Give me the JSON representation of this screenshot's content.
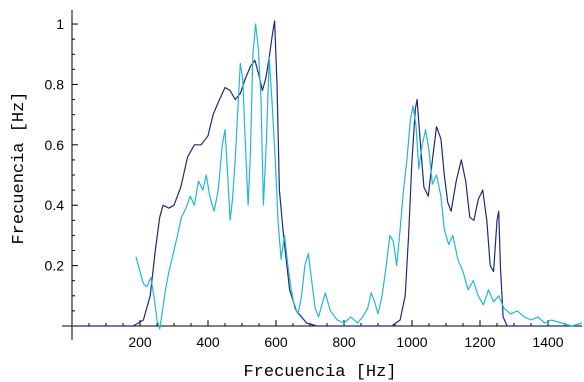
{
  "chart_data": {
    "type": "line",
    "title": "",
    "xlabel": "Frecuencia [Hz]",
    "ylabel": "Frecuencia [Hz]",
    "xlim": [
      0,
      1500
    ],
    "ylim": [
      0,
      1.02
    ],
    "grid": false,
    "x_ticks": [
      200,
      400,
      600,
      800,
      1000,
      1200,
      1400
    ],
    "x_tick_labels": [
      "200",
      "400",
      "600",
      "800",
      "1000",
      "1200",
      "1400"
    ],
    "y_ticks": [
      0.2,
      0.4,
      0.6,
      0.8,
      1
    ],
    "y_tick_labels": [
      "0.2",
      "0.4",
      "0.6",
      "0.8",
      "1"
    ],
    "series": [
      {
        "color": "#1f2a7a",
        "points": [
          [
            0,
            0
          ],
          [
            180,
            0
          ],
          [
            210,
            0.02
          ],
          [
            230,
            0.1
          ],
          [
            245,
            0.25
          ],
          [
            258,
            0.36
          ],
          [
            268,
            0.4
          ],
          [
            285,
            0.39
          ],
          [
            300,
            0.4
          ],
          [
            320,
            0.46
          ],
          [
            340,
            0.56
          ],
          [
            360,
            0.6
          ],
          [
            380,
            0.6
          ],
          [
            400,
            0.63
          ],
          [
            415,
            0.7
          ],
          [
            430,
            0.74
          ],
          [
            450,
            0.79
          ],
          [
            465,
            0.78
          ],
          [
            480,
            0.75
          ],
          [
            495,
            0.77
          ],
          [
            510,
            0.82
          ],
          [
            525,
            0.86
          ],
          [
            538,
            0.88
          ],
          [
            550,
            0.83
          ],
          [
            560,
            0.78
          ],
          [
            570,
            0.82
          ],
          [
            580,
            0.89
          ],
          [
            590,
            0.97
          ],
          [
            596,
            1.01
          ],
          [
            603,
            0.8
          ],
          [
            610,
            0.45
          ],
          [
            622,
            0.3
          ],
          [
            640,
            0.12
          ],
          [
            660,
            0.05
          ],
          [
            690,
            0.01
          ],
          [
            720,
            0
          ],
          [
            940,
            0
          ],
          [
            965,
            0.02
          ],
          [
            980,
            0.1
          ],
          [
            990,
            0.3
          ],
          [
            1000,
            0.55
          ],
          [
            1010,
            0.72
          ],
          [
            1015,
            0.75
          ],
          [
            1025,
            0.6
          ],
          [
            1035,
            0.46
          ],
          [
            1048,
            0.43
          ],
          [
            1060,
            0.55
          ],
          [
            1072,
            0.66
          ],
          [
            1085,
            0.62
          ],
          [
            1095,
            0.5
          ],
          [
            1105,
            0.41
          ],
          [
            1115,
            0.38
          ],
          [
            1130,
            0.48
          ],
          [
            1145,
            0.55
          ],
          [
            1158,
            0.48
          ],
          [
            1170,
            0.36
          ],
          [
            1182,
            0.35
          ],
          [
            1195,
            0.42
          ],
          [
            1208,
            0.45
          ],
          [
            1220,
            0.35
          ],
          [
            1230,
            0.2
          ],
          [
            1240,
            0.18
          ],
          [
            1250,
            0.35
          ],
          [
            1255,
            0.38
          ],
          [
            1260,
            0.2
          ],
          [
            1268,
            0.03
          ],
          [
            1280,
            0
          ],
          [
            1500,
            0
          ]
        ]
      },
      {
        "color": "#22b8d4",
        "points": [
          [
            188,
            0.23
          ],
          [
            200,
            0.18
          ],
          [
            210,
            0.14
          ],
          [
            220,
            0.13
          ],
          [
            232,
            0.16
          ],
          [
            242,
            0.09
          ],
          [
            250,
            0.02
          ],
          [
            258,
            -0.01
          ],
          [
            266,
            0.05
          ],
          [
            275,
            0.12
          ],
          [
            285,
            0.18
          ],
          [
            298,
            0.24
          ],
          [
            310,
            0.3
          ],
          [
            322,
            0.36
          ],
          [
            335,
            0.39
          ],
          [
            348,
            0.43
          ],
          [
            360,
            0.4
          ],
          [
            372,
            0.48
          ],
          [
            385,
            0.45
          ],
          [
            395,
            0.5
          ],
          [
            405,
            0.43
          ],
          [
            418,
            0.38
          ],
          [
            430,
            0.45
          ],
          [
            442,
            0.6
          ],
          [
            450,
            0.65
          ],
          [
            458,
            0.5
          ],
          [
            465,
            0.35
          ],
          [
            472,
            0.42
          ],
          [
            480,
            0.55
          ],
          [
            488,
            0.72
          ],
          [
            495,
            0.87
          ],
          [
            502,
            0.82
          ],
          [
            510,
            0.6
          ],
          [
            518,
            0.4
          ],
          [
            524,
            0.55
          ],
          [
            532,
            0.9
          ],
          [
            540,
            1.0
          ],
          [
            548,
            0.92
          ],
          [
            556,
            0.75
          ],
          [
            563,
            0.4
          ],
          [
            572,
            0.62
          ],
          [
            580,
            0.89
          ],
          [
            588,
            0.75
          ],
          [
            598,
            0.55
          ],
          [
            606,
            0.35
          ],
          [
            615,
            0.22
          ],
          [
            625,
            0.3
          ],
          [
            635,
            0.2
          ],
          [
            645,
            0.12
          ],
          [
            655,
            0.06
          ],
          [
            665,
            0.04
          ],
          [
            675,
            0.1
          ],
          [
            685,
            0.2
          ],
          [
            695,
            0.24
          ],
          [
            705,
            0.15
          ],
          [
            715,
            0.06
          ],
          [
            725,
            0.03
          ],
          [
            735,
            0.07
          ],
          [
            745,
            0.11
          ],
          [
            760,
            0.05
          ],
          [
            780,
            0.02
          ],
          [
            800,
            0.01
          ],
          [
            820,
            0.03
          ],
          [
            840,
            0.01
          ],
          [
            855,
            0.03
          ],
          [
            870,
            0.06
          ],
          [
            880,
            0.11
          ],
          [
            890,
            0.08
          ],
          [
            900,
            0.04
          ],
          [
            912,
            0.1
          ],
          [
            924,
            0.2
          ],
          [
            935,
            0.3
          ],
          [
            945,
            0.28
          ],
          [
            955,
            0.2
          ],
          [
            965,
            0.32
          ],
          [
            975,
            0.45
          ],
          [
            985,
            0.55
          ],
          [
            995,
            0.68
          ],
          [
            1003,
            0.73
          ],
          [
            1012,
            0.66
          ],
          [
            1020,
            0.52
          ],
          [
            1030,
            0.6
          ],
          [
            1040,
            0.65
          ],
          [
            1050,
            0.58
          ],
          [
            1060,
            0.47
          ],
          [
            1072,
            0.5
          ],
          [
            1085,
            0.43
          ],
          [
            1095,
            0.32
          ],
          [
            1108,
            0.27
          ],
          [
            1120,
            0.3
          ],
          [
            1135,
            0.22
          ],
          [
            1150,
            0.18
          ],
          [
            1165,
            0.12
          ],
          [
            1180,
            0.15
          ],
          [
            1195,
            0.1
          ],
          [
            1210,
            0.07
          ],
          [
            1225,
            0.12
          ],
          [
            1240,
            0.08
          ],
          [
            1255,
            0.1
          ],
          [
            1270,
            0.06
          ],
          [
            1290,
            0.04
          ],
          [
            1310,
            0.05
          ],
          [
            1330,
            0.03
          ],
          [
            1350,
            0.02
          ],
          [
            1370,
            0.03
          ],
          [
            1390,
            0.01
          ],
          [
            1410,
            0.02
          ],
          [
            1440,
            0.01
          ],
          [
            1470,
            0.0
          ],
          [
            1500,
            0.01
          ]
        ]
      }
    ]
  }
}
